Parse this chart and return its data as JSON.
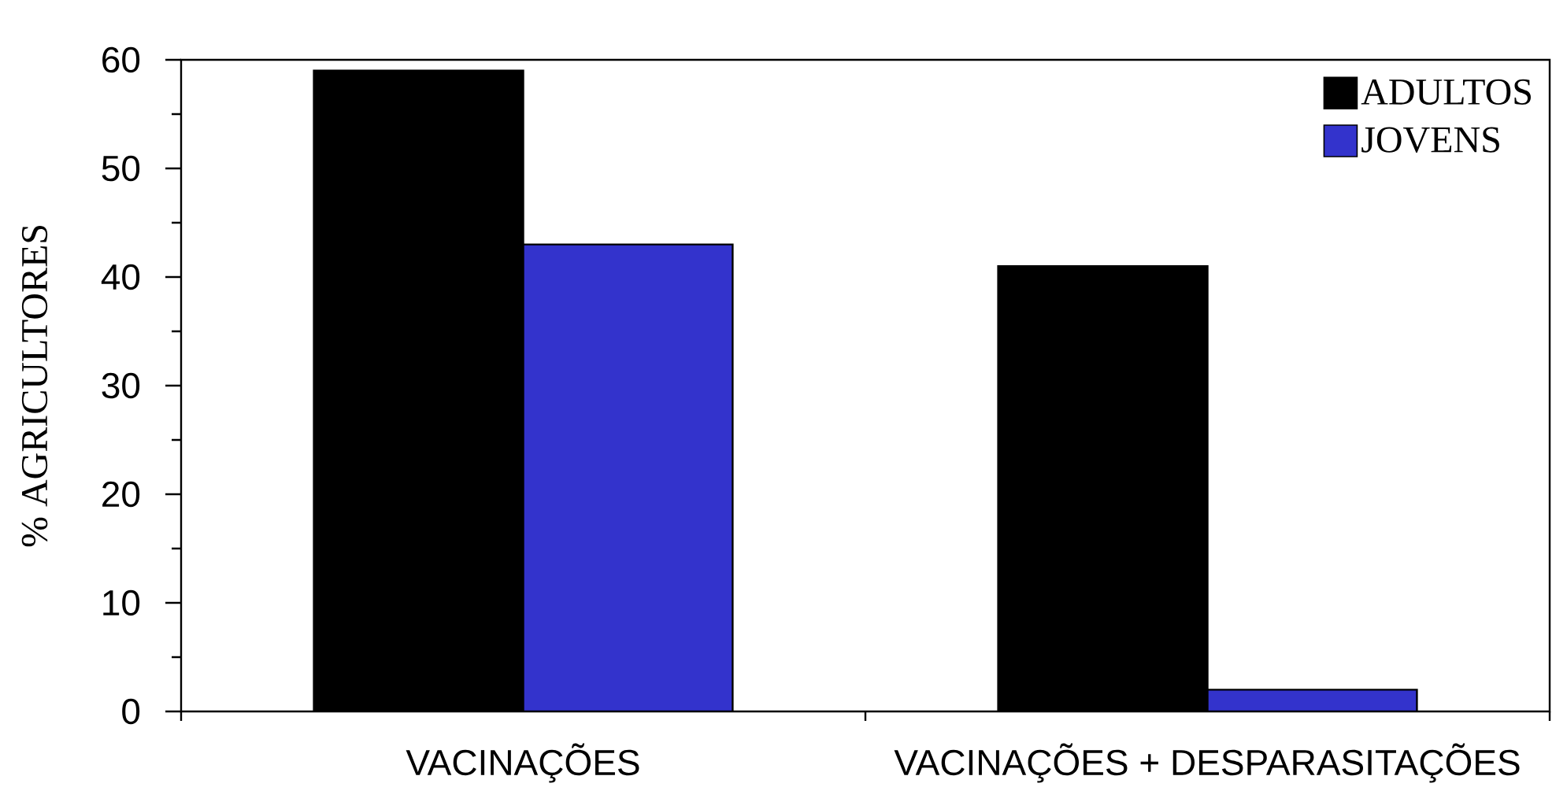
{
  "chart_data": {
    "type": "bar",
    "ylabel": "% AGRICULTORES",
    "categories": [
      "VACINAÇÕES",
      "VACINAÇÕES + DESPARASITAÇÕES"
    ],
    "series": [
      {
        "name": "ADULTOS",
        "color": "#000000",
        "values": [
          59,
          41
        ]
      },
      {
        "name": "JOVENS",
        "color": "#3333cc",
        "values": [
          43,
          2
        ]
      }
    ],
    "ylim": [
      0,
      60
    ],
    "yticks": [
      0,
      {
        "value": 5,
        "label": null
      },
      10,
      {
        "value": 15,
        "label": null
      },
      20,
      {
        "value": 25,
        "label": null
      },
      30,
      {
        "value": 35,
        "label": null
      },
      40,
      {
        "value": 45,
        "label": null
      },
      50,
      {
        "value": 55,
        "label": null
      },
      60
    ],
    "legend": "top right"
  }
}
